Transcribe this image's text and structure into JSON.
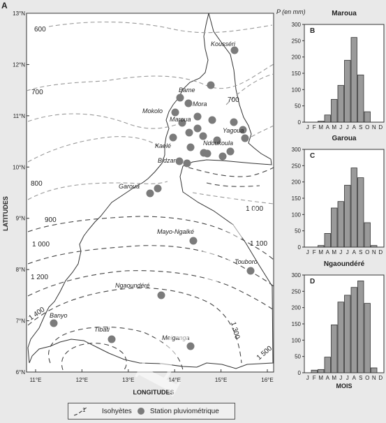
{
  "panel_a_letter": "A",
  "panel_b_letter": "B",
  "panel_c_letter": "C",
  "panel_d_letter": "D",
  "map": {
    "lat_ticks": [
      "13°N",
      "12°N",
      "11°N",
      "10°N",
      "9°N",
      "8°N",
      "7°N",
      "6°N"
    ],
    "lon_ticks": [
      "11°E",
      "12°E",
      "13°E",
      "14°E",
      "15°E",
      "16°E"
    ],
    "lat_title": "LATITUDES",
    "lon_title": "LONGITUDES",
    "p_label": "P (en mm)",
    "isohyets": {
      "i600": "600",
      "i700a": "700",
      "i700b": "700",
      "i800": "800",
      "i900": "900",
      "i1000a": "1 000",
      "i1000b": "1 000",
      "i1100": "1 100",
      "i1200": "1 200",
      "i1300": "1 300",
      "i1400": "1 400",
      "i1500": "1 500"
    },
    "stations": {
      "kousseri": "Kousséri",
      "bame": "Bame",
      "mora": "Mora",
      "mokolo": "Mokolo",
      "maroua": "Maroua",
      "yagoua": "Yagoua",
      "kaele": "Kaelé",
      "ndoukoula": "Ndoukoula",
      "bidzar": "Bidzar",
      "garoua": "Garoua",
      "mayongalke": "Mayo-Ngalké",
      "touboro": "Touboro",
      "ngaoundere": "Ngaoundéré",
      "banyo": "Banyo",
      "tibati": "Tibati",
      "meiganga": "Meiganga"
    }
  },
  "legend": {
    "isohyets": "Isohyètes",
    "stations": "Station pluviométrique",
    "mark": "1"
  },
  "watermark": "partaut",
  "chart_data": [
    {
      "type": "bar",
      "title": "Maroua",
      "categories": [
        "J",
        "F",
        "M",
        "A",
        "M",
        "J",
        "J",
        "A",
        "S",
        "O",
        "N",
        "D"
      ],
      "values": [
        0,
        0,
        3,
        22,
        70,
        113,
        190,
        260,
        145,
        32,
        0,
        0
      ],
      "ylim": [
        0,
        300
      ],
      "yticks": [
        "0",
        "50",
        "100",
        "150",
        "200",
        "250",
        "300"
      ]
    },
    {
      "type": "bar",
      "title": "Garoua",
      "categories": [
        "J",
        "F",
        "M",
        "A",
        "M",
        "J",
        "J",
        "A",
        "S",
        "O",
        "N",
        "D"
      ],
      "values": [
        0,
        0,
        5,
        42,
        120,
        140,
        190,
        243,
        213,
        75,
        5,
        0
      ],
      "ylim": [
        0,
        300
      ],
      "yticks": [
        "0",
        "50",
        "100",
        "150",
        "200",
        "250",
        "300"
      ]
    },
    {
      "type": "bar",
      "title": "Ngaoundéré",
      "categories": [
        "J",
        "F",
        "M",
        "A",
        "M",
        "J",
        "J",
        "A",
        "S",
        "O",
        "N",
        "D"
      ],
      "values": [
        0,
        8,
        10,
        48,
        147,
        217,
        238,
        262,
        282,
        213,
        15,
        0
      ],
      "ylim": [
        0,
        300
      ],
      "yticks": [
        "0",
        "50",
        "100",
        "150",
        "200",
        "250",
        "300"
      ],
      "xlabel": "MOIS"
    }
  ]
}
